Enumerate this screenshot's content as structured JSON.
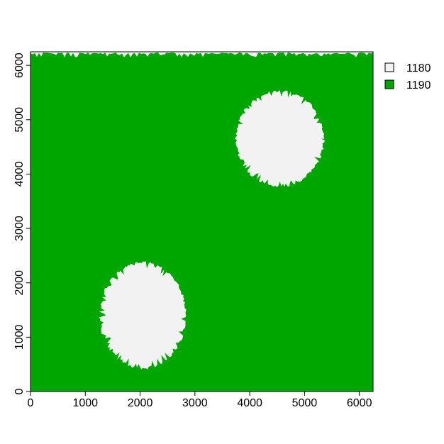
{
  "chart_data": {
    "type": "heatmap",
    "title": "",
    "xlabel": "",
    "ylabel": "",
    "xlim": [
      0,
      6250
    ],
    "ylim": [
      0,
      6250
    ],
    "x_ticks": [
      0,
      1000,
      2000,
      3000,
      4000,
      5000,
      6000
    ],
    "y_ticks": [
      0,
      1000,
      2000,
      3000,
      4000,
      5000,
      6000
    ],
    "legend": [
      {
        "label": "1180",
        "color": "#F2F2F2"
      },
      {
        "label": "1190",
        "color": "#00A600"
      }
    ],
    "legend_position": "right",
    "background_class": "1190",
    "patches": [
      {
        "class": "1180",
        "center_x": 4550,
        "center_y": 4650,
        "radius_x": 820,
        "radius_y": 900
      },
      {
        "class": "1180",
        "center_x": 2050,
        "center_y": 1400,
        "radius_x": 800,
        "radius_y": 1000
      }
    ],
    "top_edge_class": "1180",
    "grid": false
  }
}
